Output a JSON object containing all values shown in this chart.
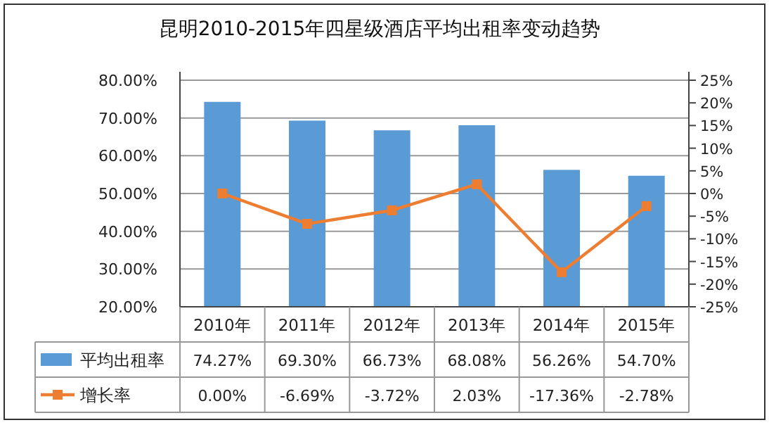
{
  "chart_data": {
    "type": "bar",
    "title": "昆明2010-2015年四星级酒店平均出租率变动趋势",
    "categories": [
      "2010年",
      "2011年",
      "2012年",
      "2013年",
      "2014年",
      "2015年"
    ],
    "series": [
      {
        "name": "平均出租率",
        "color": "#5b9bd5",
        "values": [
          74.27,
          69.3,
          66.73,
          68.08,
          56.26,
          54.7
        ],
        "value_labels": [
          "74.27%",
          "69.30%",
          "66.73%",
          "68.08%",
          "56.26%",
          "54.70%"
        ]
      },
      {
        "name": "增长率",
        "type": "line",
        "axis": "y2",
        "color": "#ed7d31",
        "values": [
          0.0,
          -6.69,
          -3.72,
          2.03,
          -17.36,
          -2.78
        ],
        "value_labels": [
          "0.00%",
          "-6.69%",
          "-3.72%",
          "2.03%",
          "-17.36%",
          "-2.78%"
        ]
      }
    ],
    "ylim": [
      20,
      80
    ],
    "yticks": [
      {
        "value": 20,
        "label": "20.00%"
      },
      {
        "value": 30,
        "label": "30.00%"
      },
      {
        "value": 40,
        "label": "40.00%"
      },
      {
        "value": 50,
        "label": "50.00%"
      },
      {
        "value": 60,
        "label": "60.00%"
      },
      {
        "value": 70,
        "label": "70.00%"
      },
      {
        "value": 80,
        "label": "80.00%"
      }
    ],
    "y2lim": [
      -25,
      25
    ],
    "y2ticks": [
      {
        "value": -25,
        "label": "-25%"
      },
      {
        "value": -20,
        "label": "-20%"
      },
      {
        "value": -15,
        "label": "-15%"
      },
      {
        "value": -10,
        "label": "-10%"
      },
      {
        "value": -5,
        "label": "-5%"
      },
      {
        "value": 0,
        "label": "0%"
      },
      {
        "value": 5,
        "label": "5%"
      },
      {
        "value": 10,
        "label": "10%"
      },
      {
        "value": 15,
        "label": "15%"
      },
      {
        "value": 20,
        "label": "20%"
      },
      {
        "value": 25,
        "label": "25%"
      }
    ],
    "grid": "y",
    "legend": "bottom",
    "marker": "square"
  }
}
